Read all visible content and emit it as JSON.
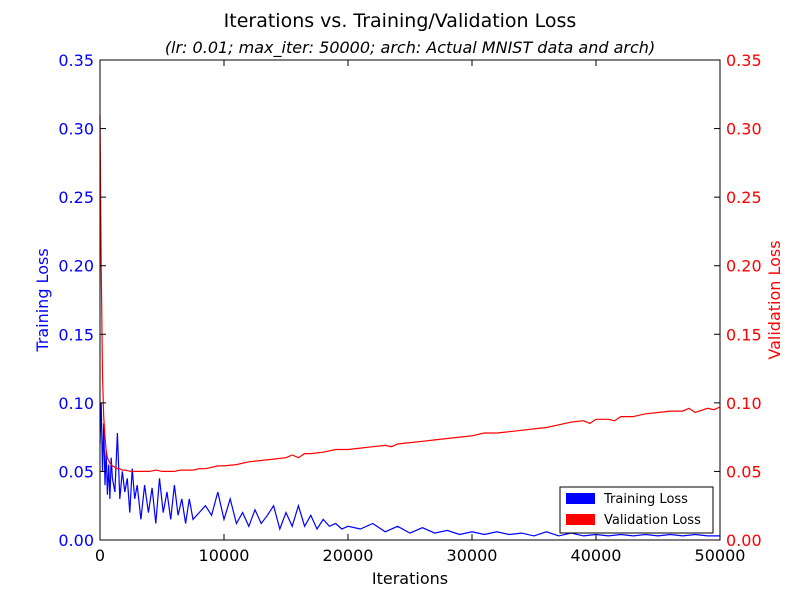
{
  "chart_data": {
    "type": "line",
    "title": "Iterations vs. Training/Validation Loss",
    "subtitle": "(lr: 0.01; max_iter: 50000; arch: Actual MNIST data and arch)",
    "xlabel": "Iterations",
    "ylabel_left": "Training Loss",
    "ylabel_right": "Validation Loss",
    "xlim": [
      0,
      50000
    ],
    "ylim": [
      0,
      0.35
    ],
    "x_ticks": [
      "0",
      "10000",
      "20000",
      "30000",
      "40000",
      "50000"
    ],
    "y_ticks": [
      "0.00",
      "0.05",
      "0.10",
      "0.15",
      "0.20",
      "0.25",
      "0.30",
      "0.35"
    ],
    "grid": false,
    "legend_position": "bottom-right",
    "colors": {
      "training": "#0000ff",
      "validation": "#ff0000"
    },
    "series": [
      {
        "name": "Training Loss",
        "axis": "left",
        "color": "#0000ff",
        "x": [
          0,
          100,
          200,
          300,
          400,
          500,
          600,
          700,
          800,
          900,
          1000,
          1200,
          1400,
          1600,
          1800,
          2000,
          2200,
          2400,
          2600,
          2800,
          3000,
          3300,
          3600,
          3900,
          4200,
          4500,
          4800,
          5100,
          5400,
          5700,
          6000,
          6300,
          6600,
          6900,
          7200,
          7500,
          8000,
          8500,
          9000,
          9500,
          10000,
          10500,
          11000,
          11500,
          12000,
          12500,
          13000,
          13500,
          14000,
          14500,
          15000,
          15500,
          16000,
          16500,
          17000,
          17500,
          18000,
          18500,
          19000,
          19500,
          20000,
          21000,
          22000,
          23000,
          24000,
          25000,
          26000,
          27000,
          28000,
          29000,
          30000,
          31000,
          32000,
          33000,
          34000,
          35000,
          36000,
          37000,
          38000,
          39000,
          40000,
          41000,
          42000,
          43000,
          44000,
          45000,
          46000,
          47000,
          48000,
          49000,
          50000
        ],
        "values": [
          0.07,
          0.1,
          0.05,
          0.085,
          0.04,
          0.065,
          0.033,
          0.055,
          0.03,
          0.06,
          0.045,
          0.035,
          0.078,
          0.03,
          0.05,
          0.035,
          0.045,
          0.02,
          0.052,
          0.03,
          0.04,
          0.015,
          0.04,
          0.02,
          0.038,
          0.012,
          0.045,
          0.02,
          0.035,
          0.015,
          0.04,
          0.018,
          0.03,
          0.012,
          0.03,
          0.015,
          0.02,
          0.025,
          0.018,
          0.035,
          0.015,
          0.03,
          0.012,
          0.02,
          0.01,
          0.022,
          0.012,
          0.018,
          0.025,
          0.008,
          0.02,
          0.01,
          0.025,
          0.01,
          0.018,
          0.008,
          0.015,
          0.01,
          0.012,
          0.008,
          0.01,
          0.008,
          0.012,
          0.006,
          0.01,
          0.005,
          0.009,
          0.005,
          0.007,
          0.004,
          0.006,
          0.004,
          0.006,
          0.004,
          0.005,
          0.003,
          0.006,
          0.003,
          0.005,
          0.003,
          0.004,
          0.003,
          0.004,
          0.003,
          0.004,
          0.003,
          0.004,
          0.003,
          0.004,
          0.003,
          0.003
        ]
      },
      {
        "name": "Validation Loss",
        "axis": "right",
        "color": "#ff0000",
        "x": [
          0,
          100,
          200,
          300,
          400,
          500,
          600,
          700,
          800,
          900,
          1000,
          1200,
          1400,
          1600,
          1800,
          2000,
          2500,
          3000,
          3500,
          4000,
          4500,
          5000,
          5500,
          6000,
          6500,
          7000,
          7500,
          8000,
          8500,
          9000,
          9500,
          10000,
          11000,
          12000,
          13000,
          14000,
          15000,
          15500,
          16000,
          16500,
          17000,
          18000,
          19000,
          20000,
          21000,
          22000,
          23000,
          23500,
          24000,
          25000,
          26000,
          27000,
          28000,
          29000,
          30000,
          31000,
          32000,
          33000,
          34000,
          35000,
          36000,
          37000,
          38000,
          39000,
          39500,
          40000,
          41000,
          41500,
          42000,
          43000,
          44000,
          45000,
          46000,
          47000,
          47500,
          48000,
          49000,
          49500,
          50000
        ],
        "values": [
          0.31,
          0.2,
          0.12,
          0.09,
          0.075,
          0.065,
          0.06,
          0.058,
          0.056,
          0.055,
          0.054,
          0.053,
          0.052,
          0.052,
          0.051,
          0.051,
          0.05,
          0.05,
          0.05,
          0.05,
          0.051,
          0.05,
          0.05,
          0.05,
          0.051,
          0.051,
          0.051,
          0.052,
          0.052,
          0.053,
          0.054,
          0.054,
          0.055,
          0.057,
          0.058,
          0.059,
          0.06,
          0.062,
          0.06,
          0.063,
          0.063,
          0.064,
          0.066,
          0.066,
          0.067,
          0.068,
          0.069,
          0.068,
          0.07,
          0.071,
          0.072,
          0.073,
          0.074,
          0.075,
          0.076,
          0.078,
          0.078,
          0.079,
          0.08,
          0.081,
          0.082,
          0.084,
          0.086,
          0.087,
          0.085,
          0.088,
          0.088,
          0.087,
          0.09,
          0.09,
          0.092,
          0.093,
          0.094,
          0.094,
          0.096,
          0.093,
          0.096,
          0.095,
          0.097
        ]
      }
    ]
  }
}
